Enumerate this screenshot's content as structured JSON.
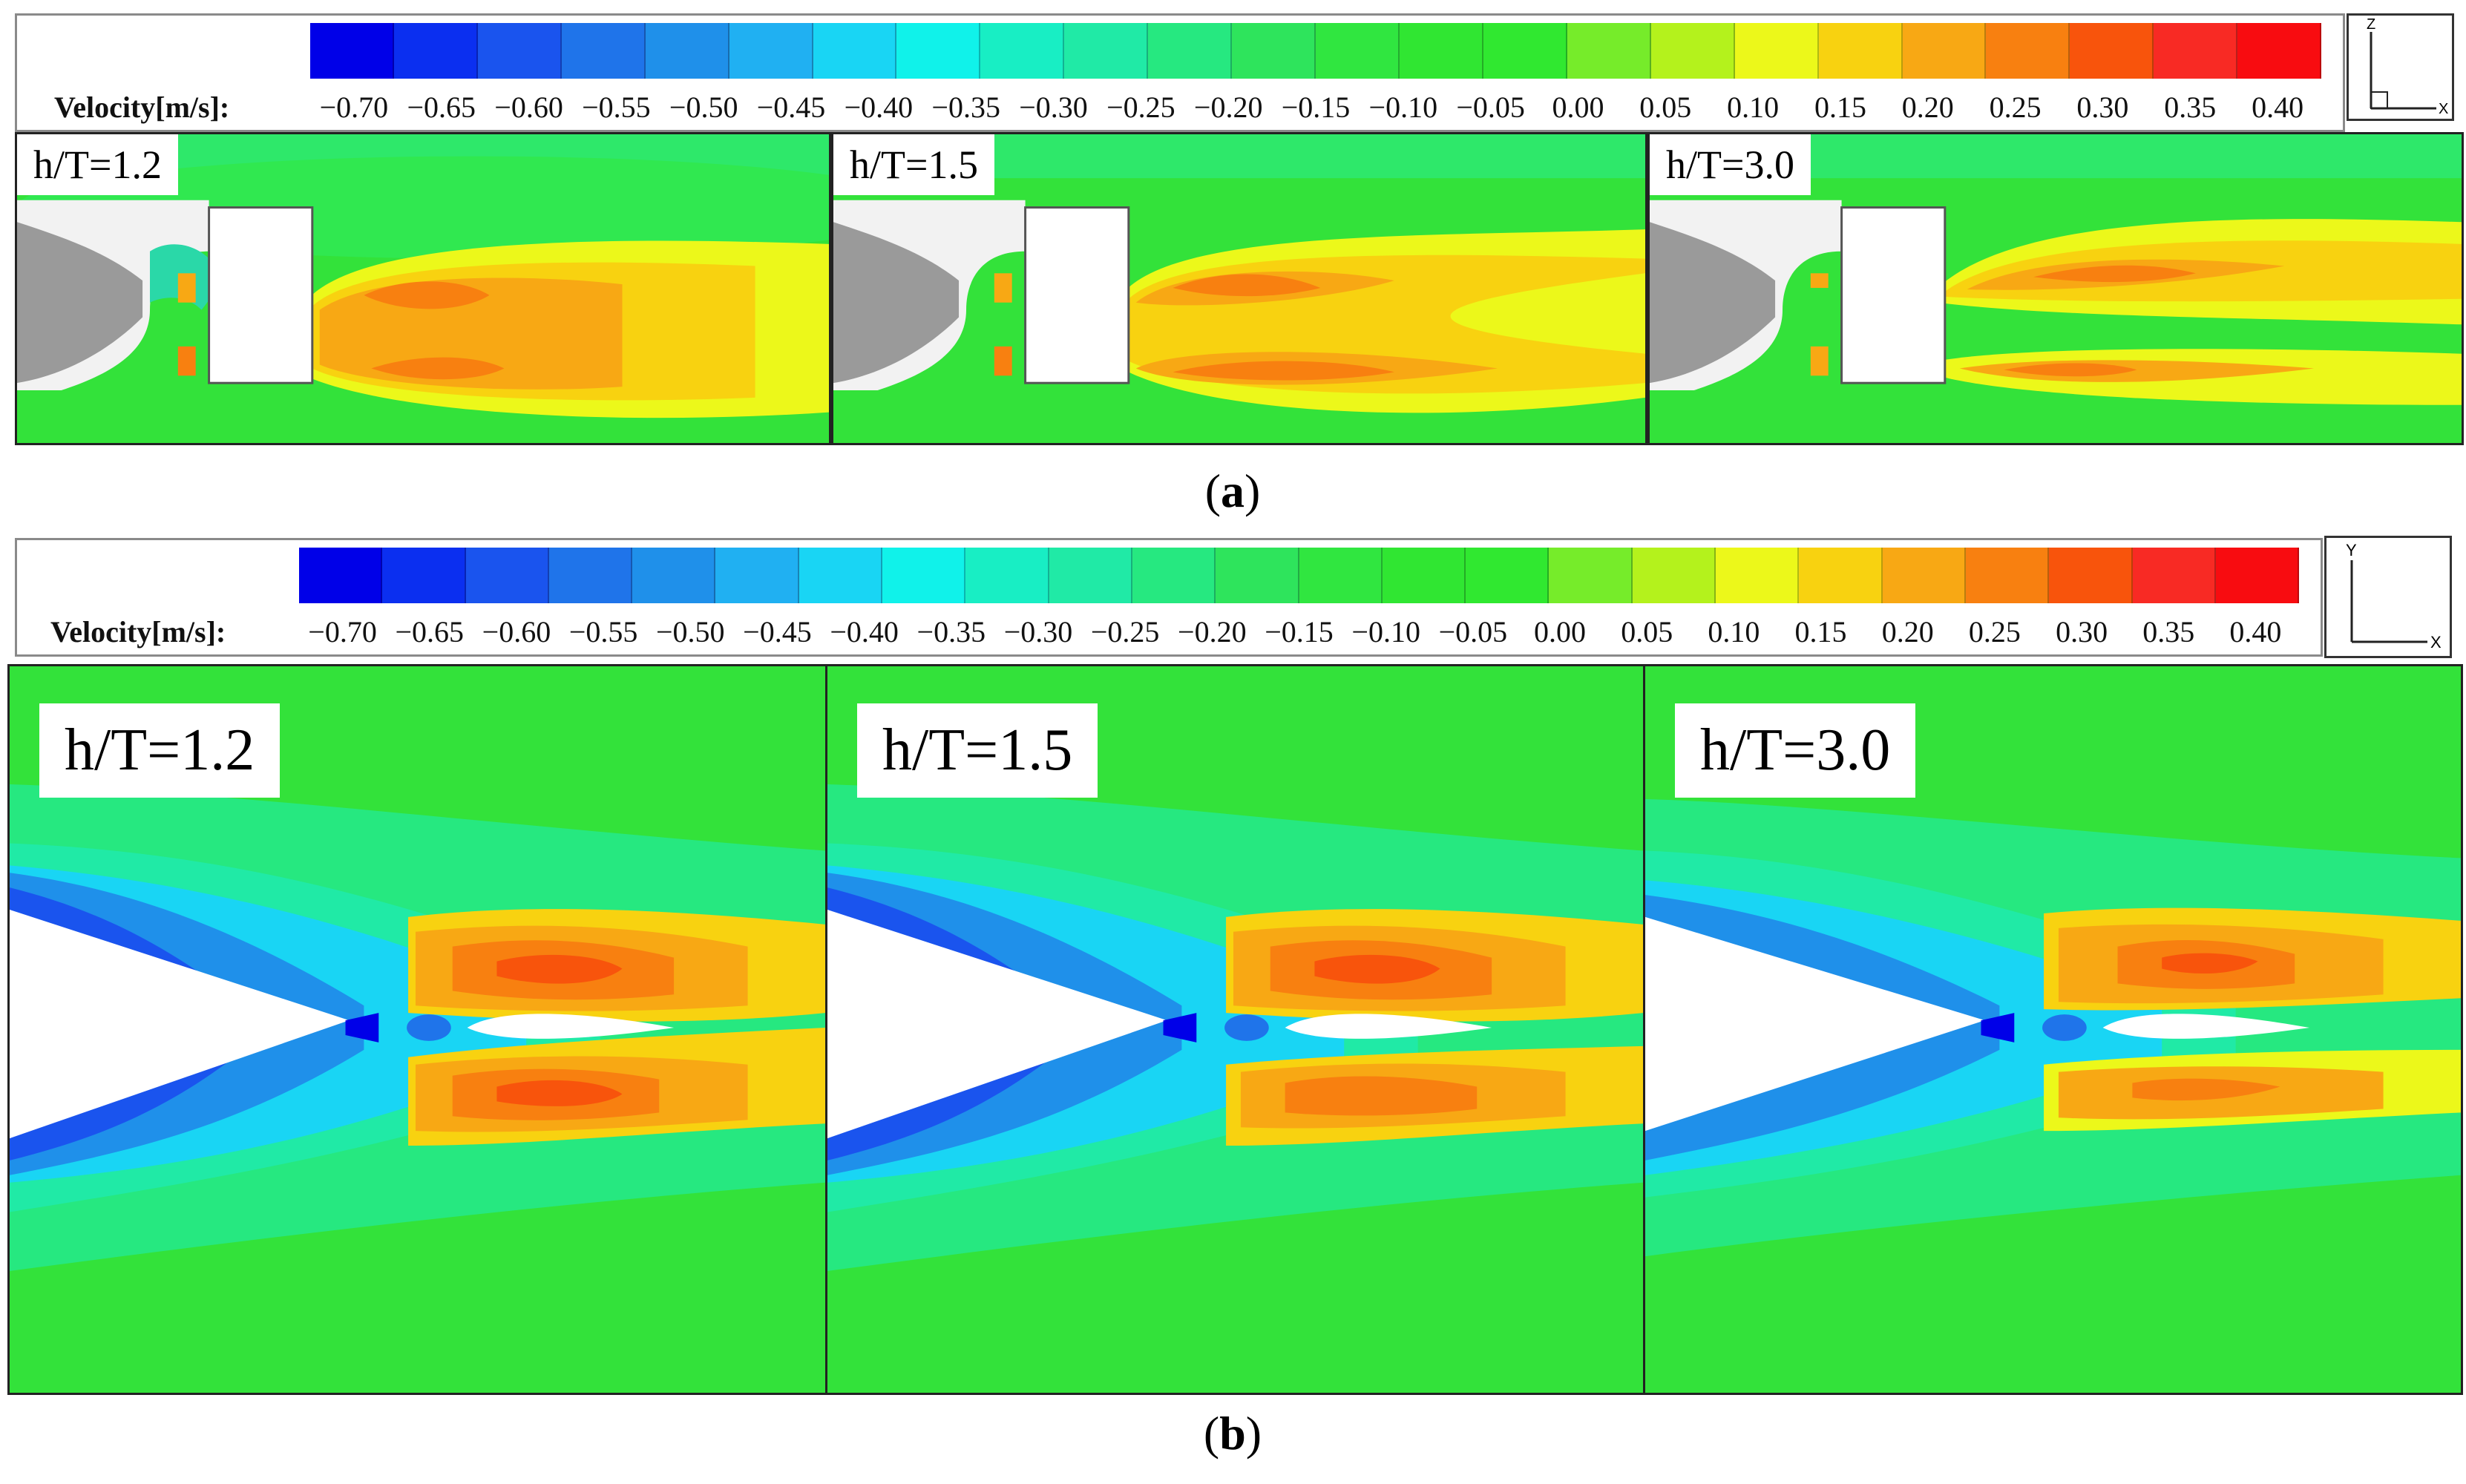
{
  "figure": {
    "caption_a": "a",
    "caption_b": "b"
  },
  "legend": {
    "label": "Velocity[m/s]:",
    "ticks": [
      "−0.70",
      "−0.65",
      "−0.60",
      "−0.55",
      "−0.50",
      "−0.45",
      "−0.40",
      "−0.35",
      "−0.30",
      "−0.25",
      "−0.20",
      "−0.15",
      "−0.10",
      "−0.05",
      "0.00",
      "0.05",
      "0.10",
      "0.15",
      "0.20",
      "0.25",
      "0.30",
      "0.35",
      "0.40"
    ],
    "colors": [
      "#0000e8",
      "#0b2ff0",
      "#1a54ee",
      "#1f74ea",
      "#1f90ea",
      "#20b0f2",
      "#19d5f4",
      "#10f2ea",
      "#18eec4",
      "#20eaa6",
      "#26e880",
      "#2ee45c",
      "#30e640",
      "#30e632",
      "#30e830",
      "#76ec2a",
      "#b4f21c",
      "#ecf81a",
      "#f8d210",
      "#f8a814",
      "#f88010",
      "#f8540c",
      "#f82a24",
      "#f80c10"
    ]
  },
  "axes_a": {
    "vertical": "Z",
    "horizontal": "X"
  },
  "axes_b": {
    "vertical": "Y",
    "horizontal": "X"
  },
  "panels_a": [
    {
      "label": "h/T=1.2"
    },
    {
      "label": "h/T=1.5"
    },
    {
      "label": "h/T=3.0"
    }
  ],
  "panels_b": [
    {
      "label": "h/T=1.2"
    },
    {
      "label": "h/T=1.5"
    },
    {
      "label": "h/T=3.0"
    }
  ]
}
